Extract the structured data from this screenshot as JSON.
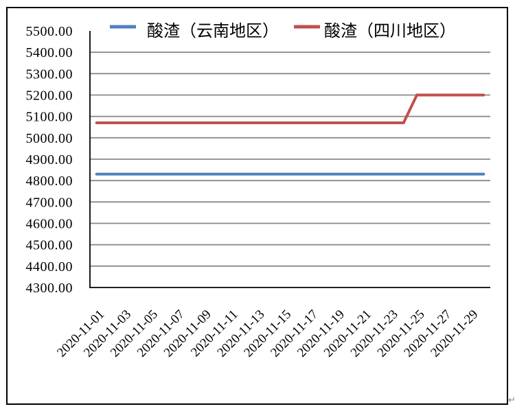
{
  "chart_data": {
    "type": "line",
    "x": [
      "2020-11-01",
      "2020-11-02",
      "2020-11-03",
      "2020-11-04",
      "2020-11-05",
      "2020-11-06",
      "2020-11-07",
      "2020-11-08",
      "2020-11-09",
      "2020-11-10",
      "2020-11-11",
      "2020-11-12",
      "2020-11-13",
      "2020-11-14",
      "2020-11-15",
      "2020-11-16",
      "2020-11-17",
      "2020-11-18",
      "2020-11-19",
      "2020-11-20",
      "2020-11-21",
      "2020-11-22",
      "2020-11-23",
      "2020-11-24",
      "2020-11-25",
      "2020-11-26",
      "2020-11-27",
      "2020-11-28",
      "2020-11-29",
      "2020-11-30"
    ],
    "series": [
      {
        "id": "yunnan",
        "name": "酸渣（云南地区）",
        "color": "#4F81BD",
        "values": [
          4830,
          4830,
          4830,
          4830,
          4830,
          4830,
          4830,
          4830,
          4830,
          4830,
          4830,
          4830,
          4830,
          4830,
          4830,
          4830,
          4830,
          4830,
          4830,
          4830,
          4830,
          4830,
          4830,
          4830,
          4830,
          4830,
          4830,
          4830,
          4830,
          4830
        ]
      },
      {
        "id": "sichuan",
        "name": "酸渣（四川地区）",
        "color": "#C0504D",
        "values": [
          5070,
          5070,
          5070,
          5070,
          5070,
          5070,
          5070,
          5070,
          5070,
          5070,
          5070,
          5070,
          5070,
          5070,
          5070,
          5070,
          5070,
          5070,
          5070,
          5070,
          5070,
          5070,
          5070,
          5070,
          5200,
          5200,
          5200,
          5200,
          5200,
          5200
        ]
      }
    ],
    "x_tick_labels": [
      "2020-11-01",
      "2020-11-03",
      "2020-11-05",
      "2020-11-07",
      "2020-11-09",
      "2020-11-11",
      "2020-11-13",
      "2020-11-15",
      "2020-11-17",
      "2020-11-19",
      "2020-11-21",
      "2020-11-23",
      "2020-11-25",
      "2020-11-27",
      "2020-11-29"
    ],
    "y_tick_labels": [
      "5500.00",
      "5400.00",
      "5300.00",
      "5200.00",
      "5100.00",
      "5000.00",
      "4900.00",
      "4800.00",
      "4700.00",
      "4600.00",
      "4500.00",
      "4400.00",
      "4300.00"
    ],
    "ylim": [
      4300,
      5500
    ],
    "grid": "horizontal",
    "gridline_color": "#8A8A8A",
    "axis_color": "#000000",
    "border_color": "#000000",
    "text_color": "#000000",
    "legend_position": "top"
  },
  "decorations": {
    "paragraph_mark": "↵"
  }
}
